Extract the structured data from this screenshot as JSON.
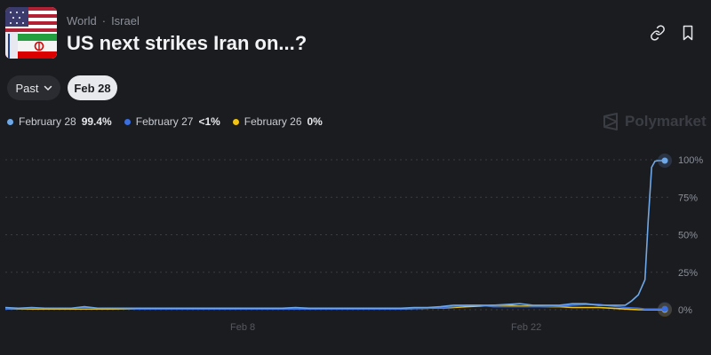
{
  "header": {
    "breadcrumbs": [
      "World",
      "Israel"
    ],
    "separator": "·",
    "title": "US next strikes Iran on...?"
  },
  "filters": {
    "past_label": "Past",
    "selected_date_label": "Feb 28"
  },
  "legend": [
    {
      "label": "February 28",
      "value": "99.4%",
      "color": "#6ea8e8"
    },
    {
      "label": "February 27",
      "value": "<1%",
      "color": "#3b6fe0"
    },
    {
      "label": "February 26",
      "value": "0%",
      "color": "#f2c40f"
    }
  ],
  "brand": {
    "name": "Polymarket"
  },
  "colors": {
    "background": "#1b1c20",
    "accent_blue": "#6ea8e8",
    "deep_blue": "#3b6fe0",
    "yellow": "#f2c40f"
  },
  "chart_data": {
    "type": "line",
    "y_tick_labels": [
      "100%",
      "75%",
      "50%",
      "25%",
      "0%"
    ],
    "x_tick_labels": [
      "Feb 8",
      "Feb 22"
    ],
    "ylim": [
      0,
      100
    ],
    "grid": true,
    "series": [
      {
        "name": "February 28",
        "color": "#6ea8e8",
        "x": [
          0,
          2,
          4,
          6,
          8,
          10,
          12,
          14,
          16,
          18,
          20,
          22,
          24,
          26,
          28,
          30,
          32,
          34,
          36,
          38,
          40,
          42,
          44,
          46,
          48,
          50,
          52,
          54,
          56,
          58,
          60,
          62,
          64,
          66,
          68,
          70,
          72,
          74,
          76,
          78,
          80,
          82,
          84,
          86,
          88,
          90,
          92,
          94,
          95,
          96,
          97,
          97.5,
          98,
          98.5,
          99,
          100
        ],
        "y": [
          1.5,
          1,
          1.5,
          1,
          1,
          1,
          2,
          1,
          1,
          1,
          1,
          1,
          1,
          1,
          1,
          1,
          1,
          1,
          1,
          1,
          1,
          1,
          1.5,
          1,
          1,
          1,
          1,
          1,
          1,
          1,
          1,
          1.5,
          1.5,
          2,
          3,
          3,
          3,
          3,
          3.5,
          4,
          3,
          3,
          3,
          4,
          4,
          3,
          3,
          3,
          6,
          10,
          20,
          60,
          95,
          99,
          99.4,
          99.4
        ]
      },
      {
        "name": "February 27",
        "color": "#3b6fe0",
        "x": [
          0,
          4,
          8,
          12,
          16,
          20,
          24,
          28,
          32,
          36,
          40,
          44,
          48,
          52,
          56,
          60,
          64,
          68,
          70,
          72,
          74,
          76,
          78,
          80,
          82,
          84,
          86,
          88,
          90,
          92,
          94,
          96,
          97,
          98,
          100
        ],
        "y": [
          0.5,
          1,
          1,
          1,
          1,
          0.5,
          0.5,
          0.5,
          0.5,
          0.5,
          0.5,
          0.5,
          0.5,
          0.5,
          0.5,
          0.5,
          1,
          2,
          3,
          3,
          2,
          2,
          2,
          2,
          2,
          2.5,
          3,
          3.5,
          3.5,
          2.5,
          1.5,
          1,
          0.5,
          0.5,
          0.5
        ]
      },
      {
        "name": "February 26",
        "color": "#f2c40f",
        "x": [
          0,
          4,
          8,
          12,
          16,
          20,
          24,
          28,
          32,
          36,
          40,
          44,
          48,
          52,
          56,
          60,
          64,
          68,
          70,
          72,
          74,
          76,
          78,
          80,
          82,
          84,
          86,
          88,
          90,
          92,
          94,
          96,
          98,
          100
        ],
        "y": [
          0.5,
          0.5,
          0.5,
          0.5,
          0.5,
          0.5,
          0.5,
          0.5,
          0.5,
          0.5,
          0.5,
          0.5,
          0.5,
          0.5,
          0.5,
          0.5,
          1,
          1.5,
          2,
          2.5,
          3,
          3,
          2.5,
          2.5,
          2,
          2,
          1.5,
          1.5,
          1.5,
          1,
          0.5,
          0,
          0,
          0
        ]
      }
    ]
  }
}
